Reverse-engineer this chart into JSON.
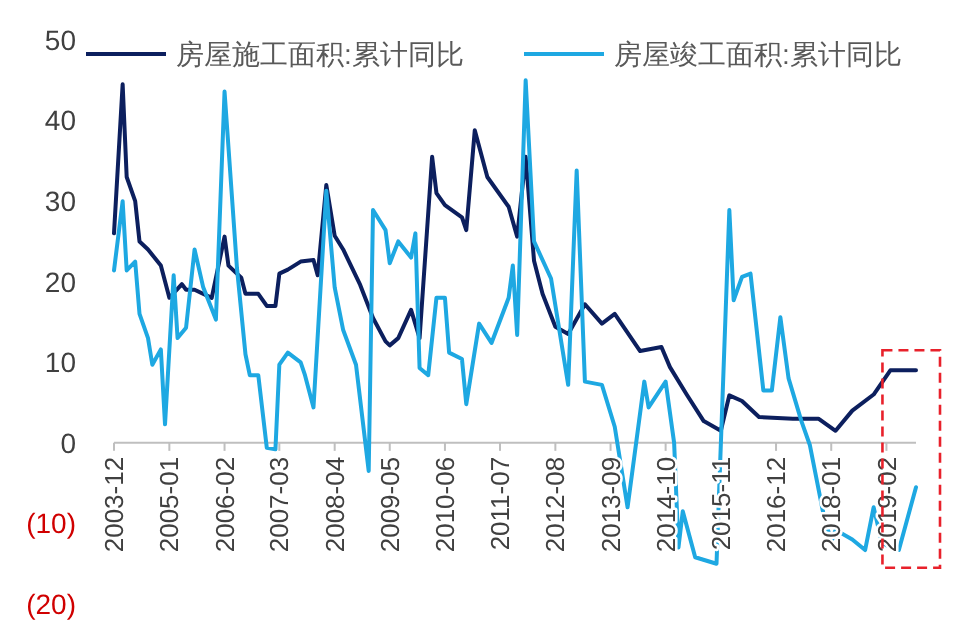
{
  "chart_data": {
    "type": "line",
    "legend": "top",
    "x": [
      "2003-12",
      "2004-02",
      "2004-03",
      "2004-05",
      "2004-06",
      "2004-08",
      "2004-11",
      "2005-01",
      "2005-04",
      "2005-05",
      "2005-07",
      "2005-11",
      "2006-02",
      "2006-03",
      "2006-06",
      "2006-07",
      "2006-10",
      "2006-12",
      "2007-02",
      "2007-03",
      "2007-05",
      "2007-08",
      "2007-11",
      "2007-12",
      "2008-02",
      "2008-04",
      "2008-06",
      "2008-10",
      "2009-01",
      "2009-04",
      "2009-05",
      "2009-07",
      "2009-10",
      "2009-12",
      "2010-03",
      "2010-04",
      "2010-06",
      "2010-10",
      "2010-11",
      "2011-01",
      "2011-04",
      "2011-09",
      "2011-11",
      "2012-01",
      "2012-03",
      "2012-05",
      "2012-08",
      "2012-11",
      "2013-03",
      "2013-07",
      "2013-10",
      "2014-04",
      "2014-09",
      "2014-11",
      "2015-03",
      "2015-07",
      "2015-11",
      "2016-01",
      "2016-04",
      "2016-08",
      "2017-04",
      "2017-10",
      "2018-02",
      "2018-06",
      "2018-11",
      "2019-03",
      "2019-09"
    ],
    "series": [
      {
        "name": "房屋施工面积:累计同比",
        "color": "#0c1f5e",
        "values": [
          26,
          44.5,
          33,
          30,
          25,
          24,
          22,
          18,
          19.7,
          19,
          19,
          18,
          25.6,
          22,
          20.5,
          18.5,
          18.5,
          17,
          17,
          21,
          21.5,
          22.5,
          22.7,
          20.8,
          32,
          25.7,
          24,
          19.6,
          15.5,
          12.6,
          12.1,
          13,
          16.5,
          13,
          35.5,
          31,
          29.5,
          28,
          26.4,
          38.8,
          33,
          29.3,
          25.6,
          35.5,
          22.6,
          18.5,
          14.4,
          13.5,
          17.2,
          14.8,
          16,
          11.4,
          11.9,
          9.4,
          6,
          2.7,
          1.5,
          5.9,
          5.2,
          3.2,
          3,
          3,
          1.5,
          4,
          6,
          9,
          9
        ]
      },
      {
        "name": "房屋竣工面积:累计同比",
        "color": "#1ea8e2",
        "x": [
          "2003-12",
          "2004-02",
          "2004-03",
          "2004-05",
          "2004-06",
          "2004-08",
          "2004-09",
          "2004-11",
          "2004-12",
          "2005-02",
          "2005-03",
          "2005-05",
          "2005-07",
          "2005-09",
          "2005-12",
          "2006-02",
          "2006-05",
          "2006-07",
          "2006-08",
          "2006-10",
          "2006-12",
          "2007-02",
          "2007-03",
          "2007-05",
          "2007-08",
          "2007-09",
          "2007-11",
          "2008-02",
          "2008-04",
          "2008-06",
          "2008-09",
          "2008-12",
          "2009-01",
          "2009-04",
          "2009-05",
          "2009-07",
          "2009-10",
          "2009-11",
          "2009-12",
          "2010-02",
          "2010-04",
          "2010-06",
          "2010-07",
          "2010-10",
          "2010-11",
          "2011-02",
          "2011-05",
          "2011-09",
          "2011-10",
          "2011-11",
          "2012-01",
          "2012-03",
          "2012-07",
          "2012-11",
          "2013-01",
          "2013-03",
          "2013-07",
          "2013-10",
          "2014-01",
          "2014-05",
          "2014-06",
          "2014-10",
          "2014-12",
          "2015-01",
          "2015-02",
          "2015-05",
          "2015-10",
          "2016-01",
          "2016-02",
          "2016-04",
          "2016-06",
          "2016-09",
          "2016-11",
          "2017-01",
          "2017-03",
          "2017-06",
          "2017-08",
          "2017-11",
          "2018-01",
          "2018-02",
          "2018-06",
          "2018-09",
          "2018-11",
          "2019-01",
          "2019-05",
          "2019-09"
        ],
        "values": [
          21.4,
          30,
          21.4,
          22.5,
          16,
          13,
          9.7,
          11.6,
          2.3,
          20.8,
          13,
          14.3,
          24,
          19.3,
          15.3,
          43.6,
          21.7,
          11,
          8.4,
          8.4,
          -0.6,
          -0.8,
          9.7,
          11.2,
          10,
          8.4,
          4.4,
          31.3,
          19.3,
          14,
          9.7,
          -3.5,
          28.9,
          26.4,
          22.3,
          25,
          23,
          26,
          9.3,
          8.4,
          18,
          18,
          11.2,
          10.4,
          4.8,
          14.8,
          12.4,
          18,
          22,
          13.4,
          45,
          25,
          20.4,
          7.2,
          33.8,
          7.6,
          7.2,
          2,
          -8,
          7.6,
          4.4,
          7.6,
          0,
          -13,
          -8.5,
          -14.2,
          -15,
          28.9,
          17.7,
          20.6,
          21,
          6.5,
          6.5,
          15.6,
          8,
          2.7,
          -0.3,
          -8.4,
          -12.3,
          -10.8,
          -12,
          -13.3,
          -8,
          -12.5,
          -13.3,
          -5.5
        ]
      }
    ],
    "xlim": [
      "2003-12",
      "2019-09"
    ],
    "xticks": [
      "2003-12",
      "2005-01",
      "2006-02",
      "2007-03",
      "2008-04",
      "2009-05",
      "2010-06",
      "2011-07",
      "2012-08",
      "2013-09",
      "2014-10",
      "2015-11",
      "2016-12",
      "2018-01",
      "2019-02"
    ],
    "ylim": [
      -20,
      50
    ],
    "yticks": [
      0,
      10,
      20,
      30,
      40,
      50,
      {
        "value": -10,
        "label": "(10)"
      },
      {
        "value": -20,
        "label": "(20)"
      }
    ]
  }
}
